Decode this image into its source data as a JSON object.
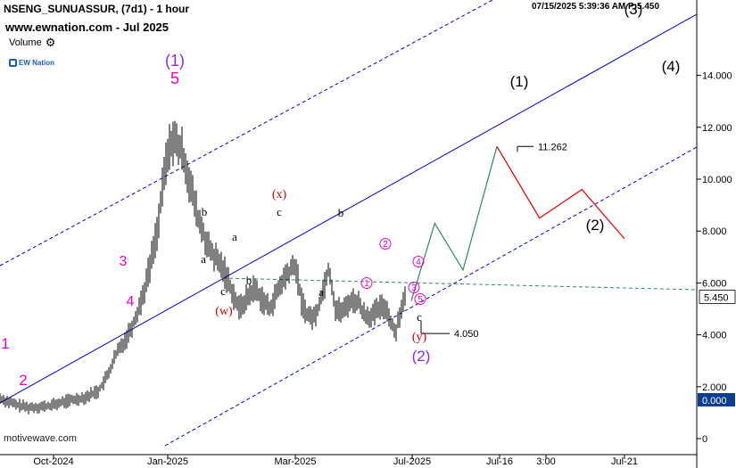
{
  "header": {
    "title": "NSENG_SUNUASSUR, (7d1) - 1 hour",
    "site": "www.ewnation.com  - Jul 2025",
    "volume_label": "Volume",
    "timestamp": "07/15/2025 5:39:36 AM  P:5.450",
    "logo_text": "EW Nation",
    "credit": "motivewave.com"
  },
  "colors": {
    "price_bars": "#000000",
    "channel": "#0000cc",
    "projection_up": "#2e8b57",
    "projection_down": "#e00000",
    "support_line": "#2e8b57",
    "wave_magenta": "#ee00cc",
    "wave_purple": "#8a2be2",
    "wave_red": "#cc0000",
    "price_badge": "#ffffff",
    "volume_badge": "#0b3d91"
  },
  "chart_data": {
    "type": "line",
    "title": "NSENG_SUNUASSUR",
    "xlabel": "",
    "ylabel": "",
    "ylim": [
      0,
      15
    ],
    "grid": false,
    "x_ticks": [
      "Oct-2024",
      "Jan-2025",
      "Mar-2025",
      "Jul-2025",
      "Jul-16",
      "3:00",
      "Jul-21"
    ],
    "y_ticks": [
      "0",
      "2.000",
      "4.000",
      "6.000",
      "8.000",
      "10.000",
      "12.000",
      "14.000"
    ],
    "price_badge": "5.450",
    "volume_badge": "0.000",
    "price_series": {
      "name": "",
      "points": [
        [
          "2024-08-20",
          1.55
        ],
        [
          "2024-09-01",
          1.3
        ],
        [
          "2024-09-10",
          1.2
        ],
        [
          "2024-09-25",
          1.25
        ],
        [
          "2024-10-10",
          1.45
        ],
        [
          "2024-10-25",
          1.6
        ],
        [
          "2024-11-05",
          1.85
        ],
        [
          "2024-11-12",
          2.4
        ],
        [
          "2024-11-20",
          3.3
        ],
        [
          "2024-11-28",
          3.9
        ],
        [
          "2024-12-05",
          4.6
        ],
        [
          "2024-12-12",
          5.6
        ],
        [
          "2024-12-18",
          6.8
        ],
        [
          "2024-12-24",
          8.2
        ],
        [
          "2024-12-30",
          10.5
        ],
        [
          "2025-01-03",
          11.6
        ],
        [
          "2025-01-08",
          11.0
        ],
        [
          "2025-01-15",
          8.5
        ],
        [
          "2025-01-20",
          7.3
        ],
        [
          "2025-01-27",
          6.5
        ],
        [
          "2025-02-03",
          5.0
        ],
        [
          "2025-02-10",
          5.8
        ],
        [
          "2025-02-17",
          5.0
        ],
        [
          "2025-02-24",
          6.2
        ],
        [
          "2025-03-01",
          6.7
        ],
        [
          "2025-03-08",
          5.2
        ],
        [
          "2025-03-15",
          4.7
        ],
        [
          "2025-03-22",
          4.7
        ],
        [
          "2025-03-29",
          5.6
        ],
        [
          "2025-04-05",
          6.6
        ],
        [
          "2025-04-12",
          5.0
        ],
        [
          "2025-04-20",
          4.9
        ],
        [
          "2025-04-27",
          5.3
        ],
        [
          "2025-05-05",
          5.3
        ],
        [
          "2025-05-12",
          4.8
        ],
        [
          "2025-05-20",
          4.7
        ],
        [
          "2025-05-27",
          5.0
        ],
        [
          "2025-06-03",
          5.1
        ],
        [
          "2025-06-10",
          4.4
        ],
        [
          "2025-06-13",
          4.05
        ],
        [
          "2025-06-20",
          5.1
        ],
        [
          "2025-06-25",
          5.45
        ]
      ]
    },
    "projection": {
      "up": [
        [
          "2025-06-30",
          5.3
        ],
        [
          "2025-07-05",
          8.3
        ],
        [
          "2025-07-10",
          6.5
        ],
        [
          "2025-07-16",
          11.262
        ]
      ],
      "down": [
        [
          "2025-07-16",
          11.262
        ],
        [
          "2025-07-18",
          8.5
        ],
        [
          "2025-07-20",
          9.6
        ],
        [
          "2025-07-22",
          7.7
        ]
      ]
    },
    "levels": [
      {
        "label": "11.262",
        "value": 11.262
      },
      {
        "label": "4.050",
        "value": 4.05
      }
    ],
    "wave_labels": [
      {
        "text": "1",
        "style": "magenta"
      },
      {
        "text": "2",
        "style": "magenta"
      },
      {
        "text": "3",
        "style": "magenta"
      },
      {
        "text": "4",
        "style": "magenta"
      },
      {
        "text": "(1)",
        "style": "purple"
      },
      {
        "text": "5",
        "style": "magenta"
      },
      {
        "text": "a",
        "style": "black"
      },
      {
        "text": "b",
        "style": "black"
      },
      {
        "text": "c",
        "style": "black"
      },
      {
        "text": "(w)",
        "style": "red"
      },
      {
        "text": "a",
        "style": "black"
      },
      {
        "text": "b",
        "style": "black"
      },
      {
        "text": "c",
        "style": "black"
      },
      {
        "text": "(x)",
        "style": "red"
      },
      {
        "text": "a",
        "style": "black"
      },
      {
        "text": "b",
        "style": "black"
      },
      {
        "text": "1",
        "style": "circled"
      },
      {
        "text": "2",
        "style": "circled"
      },
      {
        "text": "3",
        "style": "circled"
      },
      {
        "text": "4",
        "style": "circled"
      },
      {
        "text": "5",
        "style": "circled"
      },
      {
        "text": "c",
        "style": "black"
      },
      {
        "text": "(y)",
        "style": "red"
      },
      {
        "text": "(2)",
        "style": "purple"
      },
      {
        "text": "(1)",
        "style": "black"
      },
      {
        "text": "(2)",
        "style": "black"
      },
      {
        "text": "(3)",
        "style": "black"
      },
      {
        "text": "(4)",
        "style": "black"
      }
    ]
  }
}
